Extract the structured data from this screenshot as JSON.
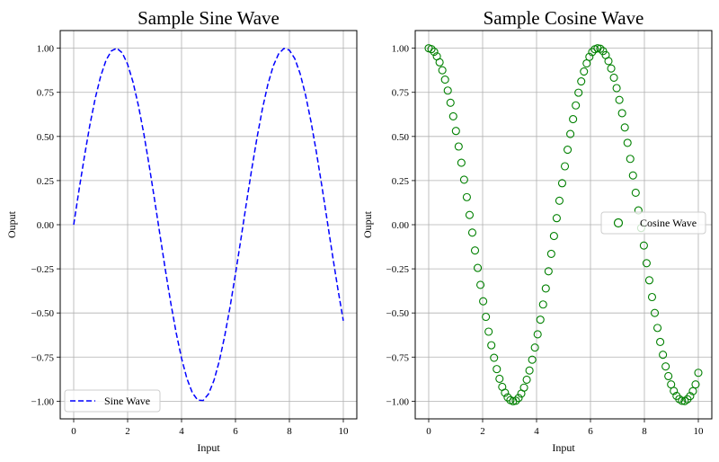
{
  "chart_data": [
    {
      "type": "line",
      "title": "Sample Sine Wave",
      "xlabel": "Input",
      "ylabel": "Ouput",
      "xlim": [
        -0.5,
        10.5
      ],
      "ylim": [
        -1.1,
        1.1
      ],
      "xticks": [
        0,
        2,
        4,
        6,
        8,
        10
      ],
      "yticks": [
        -1.0,
        -0.75,
        -0.5,
        -0.25,
        0.0,
        0.25,
        0.5,
        0.75,
        1.0
      ],
      "xtick_labels": [
        "0",
        "2",
        "4",
        "6",
        "8",
        "10"
      ],
      "ytick_labels": [
        "−1.00",
        "−0.75",
        "−0.50",
        "−0.25",
        "0.00",
        "0.25",
        "0.50",
        "0.75",
        "1.00"
      ],
      "grid": true,
      "legend": "lower-left",
      "series": [
        {
          "name": "Sine Wave",
          "color": "#0000ff",
          "style": "dashed",
          "x": [
            0,
            0.2,
            0.4,
            0.6,
            0.8,
            1.0,
            1.2,
            1.4,
            1.6,
            1.8,
            2.0,
            2.2,
            2.4,
            2.6,
            2.8,
            3.0,
            3.2,
            3.4,
            3.6,
            3.8,
            4.0,
            4.2,
            4.4,
            4.6,
            4.8,
            5.0,
            5.2,
            5.4,
            5.6,
            5.8,
            6.0,
            6.2,
            6.4,
            6.6,
            6.8,
            7.0,
            7.2,
            7.4,
            7.6,
            7.8,
            8.0,
            8.2,
            8.4,
            8.6,
            8.8,
            9.0,
            9.2,
            9.4,
            9.6,
            9.8,
            10.0
          ],
          "y": [
            0.0,
            0.199,
            0.389,
            0.565,
            0.717,
            0.841,
            0.932,
            0.985,
            1.0,
            0.974,
            0.909,
            0.808,
            0.675,
            0.516,
            0.335,
            0.141,
            -0.058,
            -0.256,
            -0.443,
            -0.612,
            -0.757,
            -0.872,
            -0.952,
            -0.994,
            -0.996,
            -0.959,
            -0.883,
            -0.773,
            -0.631,
            -0.465,
            -0.279,
            -0.083,
            0.117,
            0.312,
            0.494,
            0.657,
            0.794,
            0.899,
            0.968,
            0.999,
            0.989,
            0.941,
            0.855,
            0.734,
            0.585,
            0.412,
            0.223,
            0.025,
            -0.174,
            -0.366,
            -0.544
          ]
        }
      ]
    },
    {
      "type": "scatter",
      "title": "Sample Cosine Wave",
      "xlabel": "Input",
      "ylabel": "Ouput",
      "xlim": [
        -0.5,
        10.5
      ],
      "ylim": [
        -1.1,
        1.1
      ],
      "xticks": [
        0,
        2,
        4,
        6,
        8,
        10
      ],
      "yticks": [
        -1.0,
        -0.75,
        -0.5,
        -0.25,
        0.0,
        0.25,
        0.5,
        0.75,
        1.0
      ],
      "xtick_labels": [
        "0",
        "2",
        "4",
        "6",
        "8",
        "10"
      ],
      "ytick_labels": [
        "−1.00",
        "−0.75",
        "−0.50",
        "−0.25",
        "0.00",
        "0.25",
        "0.50",
        "0.75",
        "1.00"
      ],
      "grid": true,
      "legend": "center-right",
      "series": [
        {
          "name": "Cosine Wave",
          "color": "#008000",
          "marker": "hollow-circle",
          "x": [
            0.0,
            0.101,
            0.202,
            0.303,
            0.404,
            0.505,
            0.606,
            0.707,
            0.808,
            0.909,
            1.01,
            1.111,
            1.212,
            1.313,
            1.414,
            1.515,
            1.616,
            1.717,
            1.818,
            1.919,
            2.02,
            2.121,
            2.222,
            2.323,
            2.424,
            2.525,
            2.626,
            2.727,
            2.828,
            2.929,
            3.03,
            3.131,
            3.232,
            3.333,
            3.434,
            3.535,
            3.636,
            3.737,
            3.838,
            3.939,
            4.04,
            4.141,
            4.242,
            4.343,
            4.444,
            4.545,
            4.646,
            4.747,
            4.848,
            4.949,
            5.051,
            5.152,
            5.253,
            5.354,
            5.455,
            5.556,
            5.657,
            5.758,
            5.859,
            5.96,
            6.061,
            6.162,
            6.263,
            6.364,
            6.465,
            6.566,
            6.667,
            6.768,
            6.869,
            6.97,
            7.071,
            7.172,
            7.273,
            7.374,
            7.475,
            7.576,
            7.677,
            7.778,
            7.879,
            7.98,
            8.081,
            8.182,
            8.283,
            8.384,
            8.485,
            8.586,
            8.687,
            8.788,
            8.889,
            8.99,
            9.091,
            9.192,
            9.293,
            9.394,
            9.495,
            9.596,
            9.697,
            9.798,
            9.899,
            10.0
          ],
          "y": [
            1.0,
            0.995,
            0.98,
            0.954,
            0.92,
            0.875,
            0.822,
            0.76,
            0.691,
            0.614,
            0.531,
            0.443,
            0.351,
            0.255,
            0.156,
            0.055,
            -0.045,
            -0.146,
            -0.245,
            -0.341,
            -0.434,
            -0.522,
            -0.606,
            -0.683,
            -0.754,
            -0.818,
            -0.873,
            -0.919,
            -0.952,
            -0.978,
            -0.994,
            -1.0,
            -0.997,
            -0.982,
            -0.957,
            -0.923,
            -0.878,
            -0.826,
            -0.765,
            -0.696,
            -0.621,
            -0.538,
            -0.452,
            -0.361,
            -0.264,
            -0.165,
            -0.064,
            0.037,
            0.136,
            0.235,
            0.331,
            0.425,
            0.514,
            0.598,
            0.676,
            0.748,
            0.812,
            0.868,
            0.914,
            0.951,
            0.978,
            0.994,
            1.0,
            0.997,
            0.984,
            0.961,
            0.927,
            0.885,
            0.833,
            0.774,
            0.707,
            0.632,
            0.551,
            0.464,
            0.373,
            0.279,
            0.181,
            0.081,
            -0.019,
            -0.118,
            -0.218,
            -0.315,
            -0.41,
            -0.5,
            -0.585,
            -0.664,
            -0.737,
            -0.803,
            -0.858,
            -0.905,
            -0.942,
            -0.97,
            -0.988,
            -0.998,
            -0.999,
            -0.989,
            -0.971,
            -0.943,
            -0.905,
            -0.839
          ]
        }
      ]
    }
  ]
}
